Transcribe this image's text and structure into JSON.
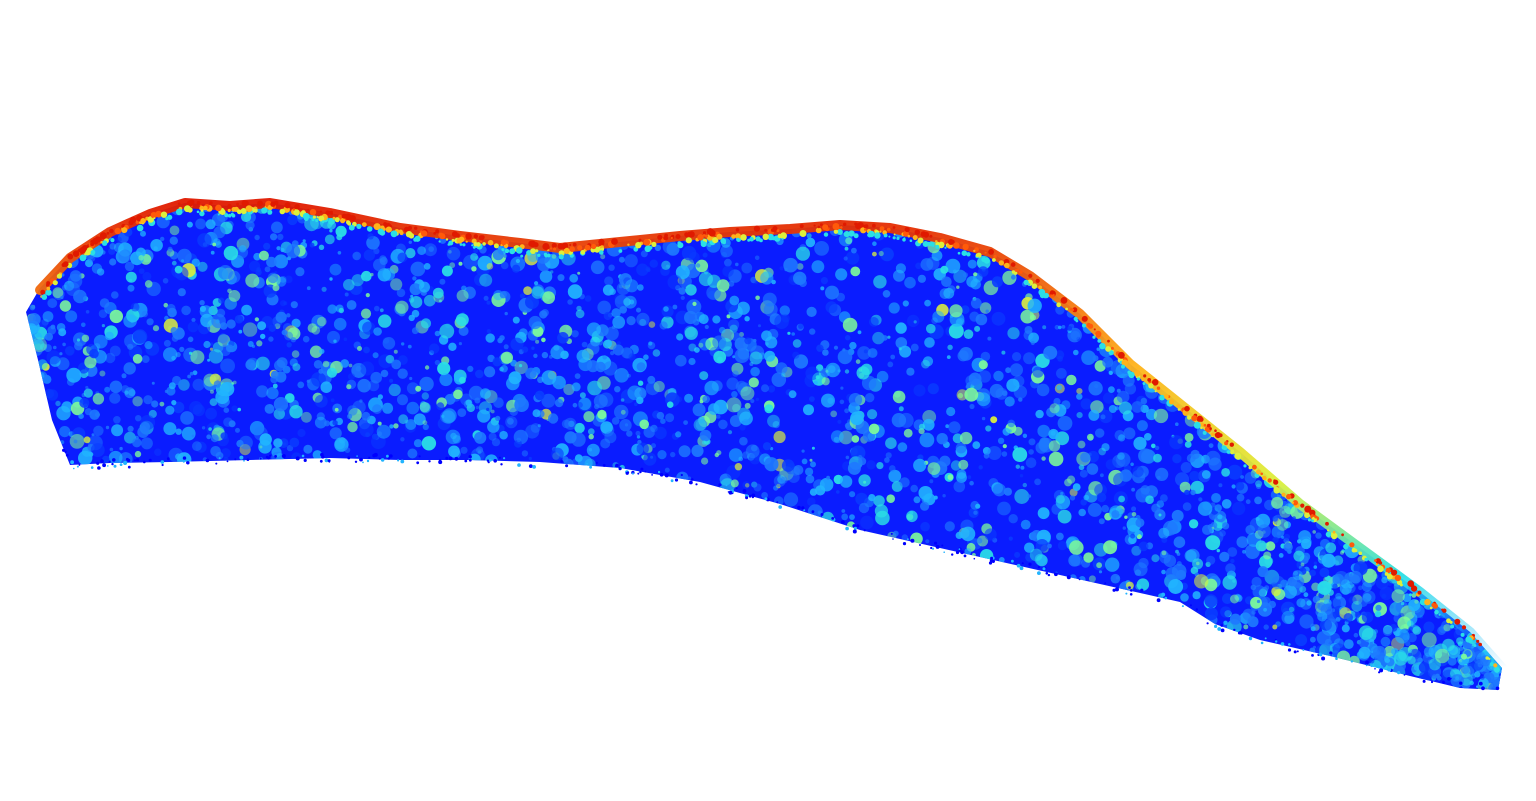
{
  "scene": {
    "kind": "lidar-point-cloud",
    "colormap": "jet",
    "background_color": "#ffffff",
    "palette": [
      "#0000ff",
      "#0a3cff",
      "#1e78ff",
      "#21b4ff",
      "#2adfe6",
      "#7dfb9a",
      "#dcf03c",
      "#ffb31a",
      "#ff5a0a",
      "#e01a00"
    ]
  }
}
